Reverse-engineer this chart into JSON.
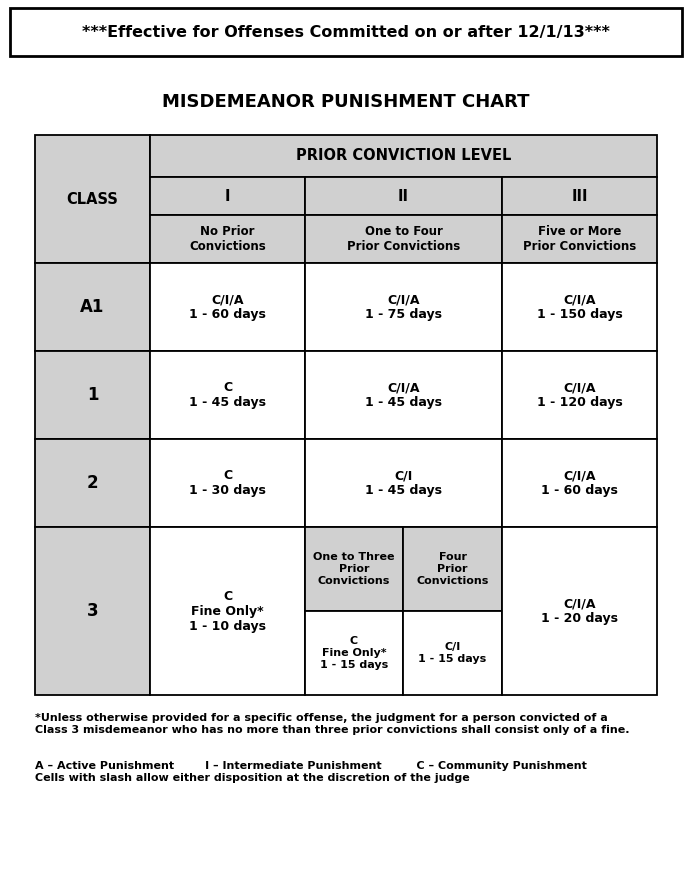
{
  "title": "MISDEMEANOR PUNISHMENT CHART",
  "header_banner": "***Effective for Offenses Committed on or after 12/1/13***",
  "footnote1": "*Unless otherwise provided for a specific offense, the judgment for a person convicted of a\nClass 3 misdemeanor who has no more than three prior convictions shall consist only of a fine.",
  "footnote2": "A – Active Punishment        I – Intermediate Punishment         C – Community Punishment\nCells with slash allow either disposition at the discretion of the judge",
  "bg_color": "#ffffff",
  "cell_bg_gray": "#d0d0d0",
  "cell_bg_white": "#ffffff",
  "border_color": "#000000",
  "prior_level_header": "PRIOR CONVICTION LEVEL",
  "table_data": {
    "A1_I": "C/I/A\n1 - 60 days",
    "A1_II": "C/I/A\n1 - 75 days",
    "A1_III": "C/I/A\n1 - 150 days",
    "1_I": "C\n1 - 45 days",
    "1_II": "C/I/A\n1 - 45 days",
    "1_III": "C/I/A\n1 - 120 days",
    "2_I": "C\n1 - 30 days",
    "2_II": "C/I\n1 - 45 days",
    "2_III": "C/I/A\n1 - 60 days",
    "3_I": "C\nFine Only*\n1 - 10 days",
    "3_IIa_hdr": "One to Three\nPrior\nConvictions",
    "3_IIb_hdr": "Four\nPrior\nConvictions",
    "3_IIa_val": "C\nFine Only*\n1 - 15 days",
    "3_IIb_val": "C/I\n1 - 15 days",
    "3_III": "C/I/A\n1 - 20 days"
  },
  "fig_width": 6.92,
  "fig_height": 8.71,
  "dpi": 100
}
